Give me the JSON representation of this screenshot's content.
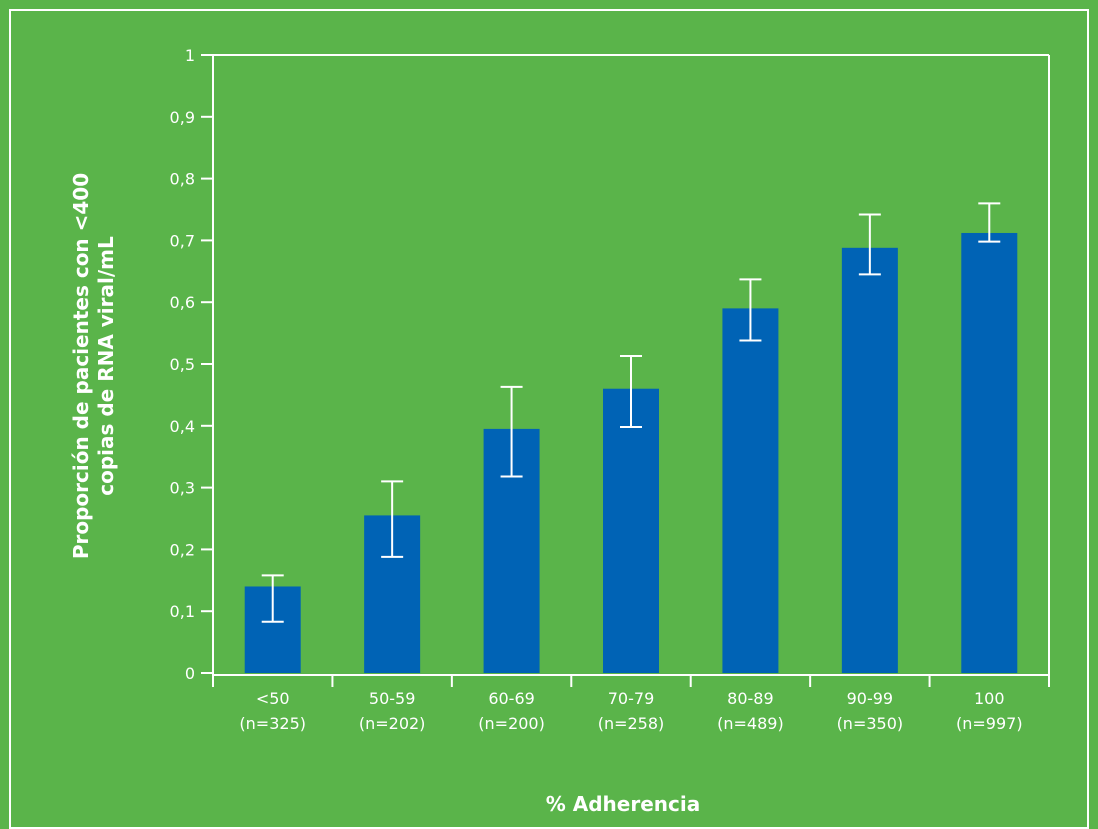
{
  "chart_data": {
    "type": "bar",
    "title": "",
    "xlabel": "% Adherencia",
    "ylabel_line1": "Proporción de pacientes con <400",
    "ylabel_line2": "copias de RNA viral/mL",
    "ylim": [
      0,
      1
    ],
    "yticks": [
      0,
      0.1,
      0.2,
      0.3,
      0.4,
      0.5,
      0.6,
      0.7,
      0.8,
      0.9,
      1
    ],
    "ytick_labels": [
      "0",
      "0,1",
      "0,2",
      "0,3",
      "0,4",
      "0,5",
      "0,6",
      "0,7",
      "0,8",
      "0,9",
      "1"
    ],
    "categories": [
      "<50",
      "50-59",
      "60-69",
      "70-79",
      "80-89",
      "90-99",
      "100"
    ],
    "category_n": [
      "(n=325)",
      "(n=202)",
      "(n=200)",
      "(n=258)",
      "(n=489)",
      "(n=350)",
      "(n=997)"
    ],
    "values": [
      0.14,
      0.255,
      0.395,
      0.46,
      0.59,
      0.688,
      0.712
    ],
    "error_low": [
      0.083,
      0.188,
      0.318,
      0.398,
      0.538,
      0.645,
      0.698
    ],
    "error_high": [
      0.158,
      0.31,
      0.463,
      0.513,
      0.637,
      0.742,
      0.76
    ],
    "grid": false,
    "legend": "none",
    "colors": {
      "background": "#5ab44a",
      "bar": "#0063b5",
      "axis": "#ffffff",
      "error_bar": "#ffffff"
    }
  }
}
